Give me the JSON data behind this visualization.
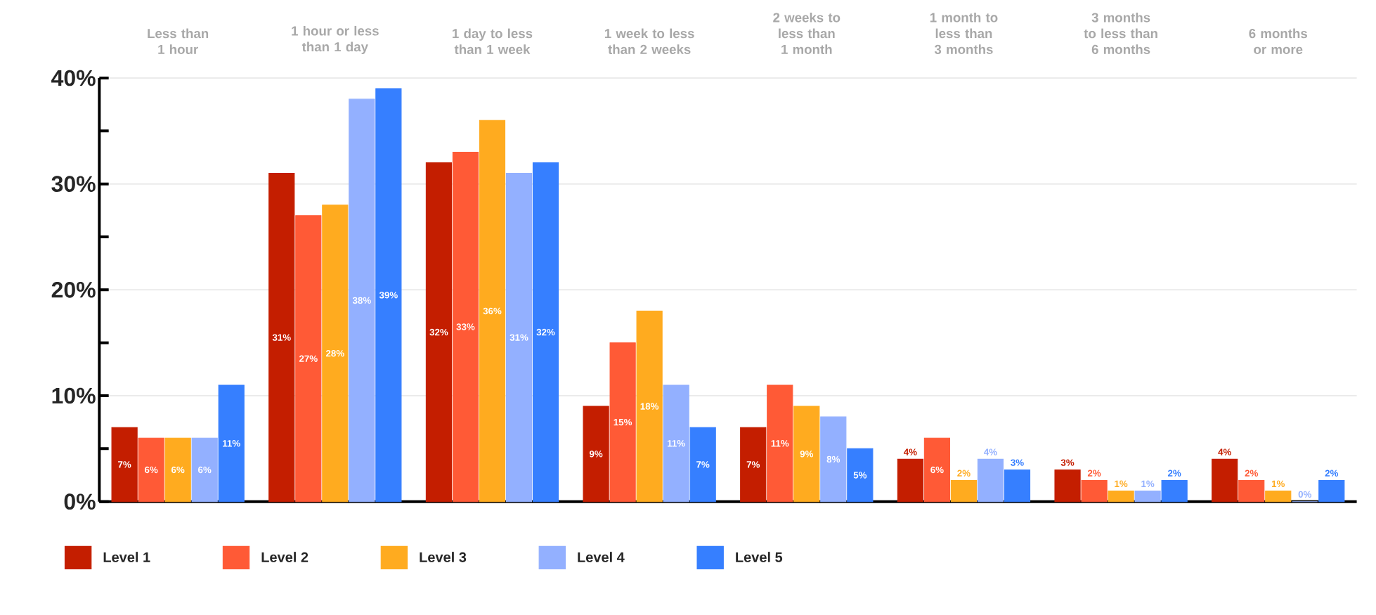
{
  "chart_data": {
    "type": "bar",
    "categories": [
      "Less than 1 hour",
      "1 hour or less than 1 day",
      "1 day to less than 1 week",
      "1 week to less than 2 weeks",
      "2 weeks to less than 1 month",
      "1 month to less than 3 months",
      "3 months to less than 6 months",
      "6 months or more"
    ],
    "series": [
      {
        "name": "Level 1",
        "color": "#c41e00",
        "values": [
          7,
          31,
          32,
          9,
          7,
          4,
          3,
          4
        ],
        "value_labels": [
          "7%",
          "31%",
          "32%",
          "9%",
          "7%",
          "4%",
          "3%",
          "4%"
        ]
      },
      {
        "name": "Level 2",
        "color": "#ff5a36",
        "values": [
          6,
          27,
          33,
          15,
          11,
          6,
          2,
          2
        ],
        "value_labels": [
          "6%",
          "27%",
          "33%",
          "15%",
          "11%",
          "6%",
          "2%",
          "2%"
        ]
      },
      {
        "name": "Level 3",
        "color": "#ffab1f",
        "values": [
          6,
          28,
          36,
          18,
          9,
          2,
          1,
          1
        ],
        "value_labels": [
          "6%",
          "28%",
          "36%",
          "18%",
          "9%",
          "2%",
          "1%",
          "1%"
        ]
      },
      {
        "name": "Level 4",
        "color": "#93b0ff",
        "values": [
          6,
          38,
          31,
          11,
          8,
          4,
          1,
          0
        ],
        "value_labels": [
          "6%",
          "38%",
          "31%",
          "11%",
          "8%",
          "4%",
          "1%",
          "0%"
        ]
      },
      {
        "name": "Level 5",
        "color": "#367fff",
        "values": [
          11,
          39,
          32,
          7,
          5,
          3,
          2,
          2
        ],
        "value_labels": [
          "11%",
          "39%",
          "32%",
          "7%",
          "5%",
          "3%",
          "2%",
          "2%"
        ]
      }
    ],
    "ylim": [
      0,
      40
    ],
    "yticks": [
      {
        "value": 0,
        "label": "0%"
      },
      {
        "value": 5,
        "label": null
      },
      {
        "value": 10,
        "label": "10%"
      },
      {
        "value": 15,
        "label": null
      },
      {
        "value": 20,
        "label": "20%"
      },
      {
        "value": 25,
        "label": null
      },
      {
        "value": 30,
        "label": "30%"
      },
      {
        "value": 35,
        "label": null
      },
      {
        "value": 40,
        "label": "40%"
      }
    ],
    "grid": "y",
    "legend": "bottom"
  }
}
